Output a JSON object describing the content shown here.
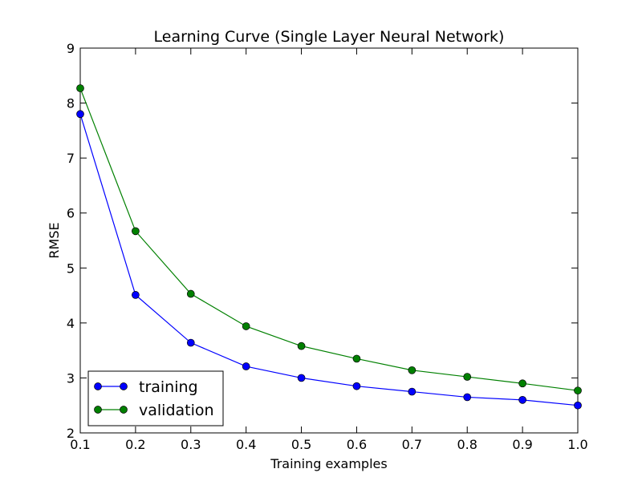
{
  "chart_data": {
    "type": "line",
    "title": "Learning Curve (Single Layer Neural Network)",
    "xlabel": "Training examples",
    "ylabel": "RMSE",
    "xlim": [
      0.1,
      1.0
    ],
    "ylim": [
      2,
      9
    ],
    "x_ticks": [
      "0.1",
      "0.2",
      "0.3",
      "0.4",
      "0.5",
      "0.6",
      "0.7",
      "0.8",
      "0.9",
      "1.0"
    ],
    "y_ticks": [
      "2",
      "3",
      "4",
      "5",
      "6",
      "7",
      "8",
      "9"
    ],
    "grid": false,
    "legend_position": "lower-left",
    "x": [
      0.1,
      0.2,
      0.3,
      0.4,
      0.5,
      0.6,
      0.7,
      0.8,
      0.9,
      1.0
    ],
    "series": [
      {
        "name": "training",
        "color": "#0000ff",
        "values": [
          7.8,
          4.51,
          3.64,
          3.21,
          3.0,
          2.85,
          2.75,
          2.65,
          2.6,
          2.5
        ]
      },
      {
        "name": "validation",
        "color": "#008000",
        "values": [
          8.27,
          5.67,
          4.53,
          3.94,
          3.58,
          3.35,
          3.14,
          3.02,
          2.9,
          2.77
        ]
      }
    ]
  }
}
